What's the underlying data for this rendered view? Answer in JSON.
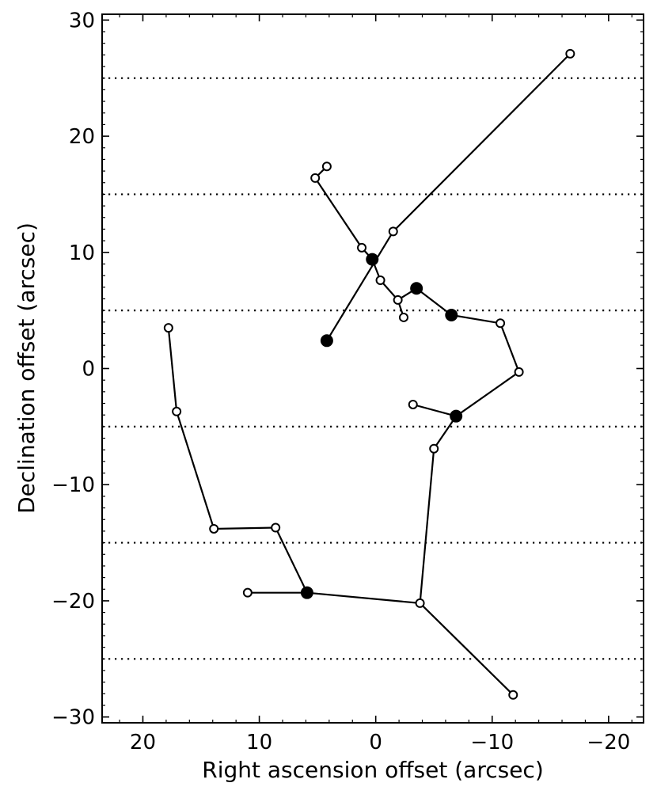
{
  "chart_data": {
    "type": "scatter",
    "title": "",
    "xlabel": "Right ascension offset (arcsec)",
    "ylabel": "Declination offset (arcsec)",
    "xlim": [
      23.5,
      -23.0
    ],
    "ylim": [
      -30.5,
      30.5
    ],
    "x_reversed": true,
    "xticks": [
      20,
      10,
      0,
      -10,
      -20
    ],
    "yticks": [
      30,
      20,
      10,
      0,
      -10,
      -20,
      -30
    ],
    "xtick_labels": [
      "20",
      "10",
      "0",
      "−10",
      "−20"
    ],
    "ytick_labels": [
      "30",
      "20",
      "10",
      "0",
      "−10",
      "−20",
      "−30"
    ],
    "grid": false,
    "hlines": {
      "y": [
        25,
        15,
        5,
        -5,
        -15,
        -25
      ],
      "style": "dotted"
    },
    "segments": [
      [
        [
          -16.7,
          27.1
        ],
        [
          -1.5,
          11.8
        ],
        [
          4.2,
          2.4
        ]
      ],
      [
        [
          4.2,
          17.4
        ],
        [
          5.2,
          16.4
        ],
        [
          1.2,
          10.4
        ],
        [
          0.3,
          9.4
        ],
        [
          -0.4,
          7.6
        ],
        [
          -1.9,
          5.9
        ],
        [
          -2.4,
          4.4
        ]
      ],
      [
        [
          -1.9,
          5.9
        ],
        [
          -3.5,
          6.9
        ],
        [
          -6.5,
          4.6
        ],
        [
          -10.7,
          3.9
        ],
        [
          -12.3,
          -0.3
        ],
        [
          -6.9,
          -4.1
        ],
        [
          -3.2,
          -3.1
        ]
      ],
      [
        [
          -6.9,
          -4.1
        ],
        [
          -5.0,
          -6.9
        ],
        [
          -3.8,
          -20.2
        ],
        [
          -11.8,
          -28.1
        ]
      ],
      [
        [
          -3.8,
          -20.2
        ],
        [
          5.9,
          -19.3
        ],
        [
          11.0,
          -19.3
        ]
      ],
      [
        [
          5.9,
          -19.3
        ],
        [
          8.6,
          -13.7
        ],
        [
          13.9,
          -13.8
        ],
        [
          17.1,
          -3.7
        ],
        [
          17.8,
          3.5
        ]
      ]
    ],
    "filled_points": [
      [
        0.3,
        9.4
      ],
      [
        4.2,
        2.4
      ],
      [
        -3.5,
        6.9
      ],
      [
        -6.5,
        4.6
      ],
      [
        -6.9,
        -4.1
      ],
      [
        5.9,
        -19.3
      ]
    ],
    "open_points": [
      [
        -16.7,
        27.1
      ],
      [
        -1.5,
        11.8
      ],
      [
        4.2,
        17.4
      ],
      [
        5.2,
        16.4
      ],
      [
        1.2,
        10.4
      ],
      [
        -0.4,
        7.6
      ],
      [
        -1.9,
        5.9
      ],
      [
        -2.4,
        4.4
      ],
      [
        -10.7,
        3.9
      ],
      [
        -12.3,
        -0.3
      ],
      [
        -3.2,
        -3.1
      ],
      [
        -5.0,
        -6.9
      ],
      [
        -3.8,
        -20.2
      ],
      [
        -11.8,
        -28.1
      ],
      [
        11.0,
        -19.3
      ],
      [
        8.6,
        -13.7
      ],
      [
        13.9,
        -13.8
      ],
      [
        17.1,
        -3.7
      ],
      [
        17.8,
        3.5
      ]
    ],
    "colors": {
      "line": "#000000",
      "marker": "#000000",
      "background": "#ffffff"
    }
  }
}
